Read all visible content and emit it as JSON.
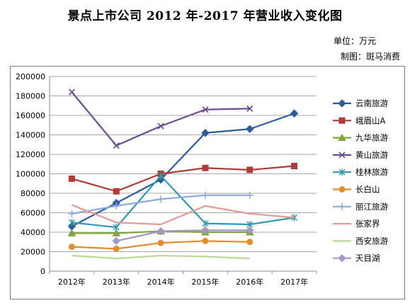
{
  "header": {
    "title": "景点上市公司 2012 年-2017 年营业收入变化图",
    "unit": "单位：万元",
    "made_by": "制图：斑马消费"
  },
  "chart_data": {
    "type": "line",
    "title": "景点上市公司 2012 年-2017 年营业收入变化图",
    "xlabel": "",
    "ylabel": "",
    "ylim": [
      0,
      200000
    ],
    "yticks": [
      0,
      20000,
      40000,
      60000,
      80000,
      100000,
      120000,
      140000,
      160000,
      180000,
      200000
    ],
    "ytick_labels": [
      "0",
      "20000",
      "40000",
      "60000",
      "80000",
      "100000",
      "120000",
      "140000",
      "160000",
      "180000",
      "200000"
    ],
    "categories": [
      "2012年",
      "2013年",
      "2014年",
      "2015年",
      "2016年",
      "2017年"
    ],
    "grid": true,
    "legend_position": "right",
    "series": [
      {
        "name": "云南旅游",
        "color": "#2e5c9a",
        "marker": "diamond",
        "values": [
          46000,
          70000,
          94000,
          142000,
          146000,
          162000
        ]
      },
      {
        "name": "峨眉山A",
        "color": "#b03a36",
        "marker": "square",
        "values": [
          95000,
          82000,
          100000,
          106000,
          104000,
          108000
        ]
      },
      {
        "name": "九华旅游",
        "color": "#7ea640",
        "marker": "triangle",
        "values": [
          39000,
          39000,
          41000,
          40000,
          40000,
          null
        ]
      },
      {
        "name": "黄山旅游",
        "color": "#6b4a94",
        "marker": "x",
        "values": [
          184000,
          129000,
          149000,
          166000,
          167000,
          null
        ]
      },
      {
        "name": "桂林旅游",
        "color": "#2f9aae",
        "marker": "star",
        "values": [
          50000,
          45000,
          98000,
          49000,
          48000,
          55000
        ]
      },
      {
        "name": "长白山",
        "color": "#e28e2e",
        "marker": "circle",
        "values": [
          25000,
          23000,
          29000,
          31000,
          30000,
          null
        ]
      },
      {
        "name": "丽江旅游",
        "color": "#8eaadb",
        "marker": "plus",
        "values": [
          59000,
          67000,
          74000,
          78000,
          78000,
          null
        ]
      },
      {
        "name": "张家界",
        "color": "#e69a96",
        "marker": "none",
        "values": [
          68000,
          50000,
          48000,
          67000,
          59000,
          55000
        ]
      },
      {
        "name": "西安旅游",
        "color": "#bcd89a",
        "marker": "none",
        "values": [
          16000,
          13000,
          16000,
          15000,
          13000,
          null
        ]
      },
      {
        "name": "天目湖",
        "color": "#a797c7",
        "marker": "diamond",
        "values": [
          null,
          31000,
          41000,
          42000,
          42000,
          null
        ]
      }
    ]
  }
}
